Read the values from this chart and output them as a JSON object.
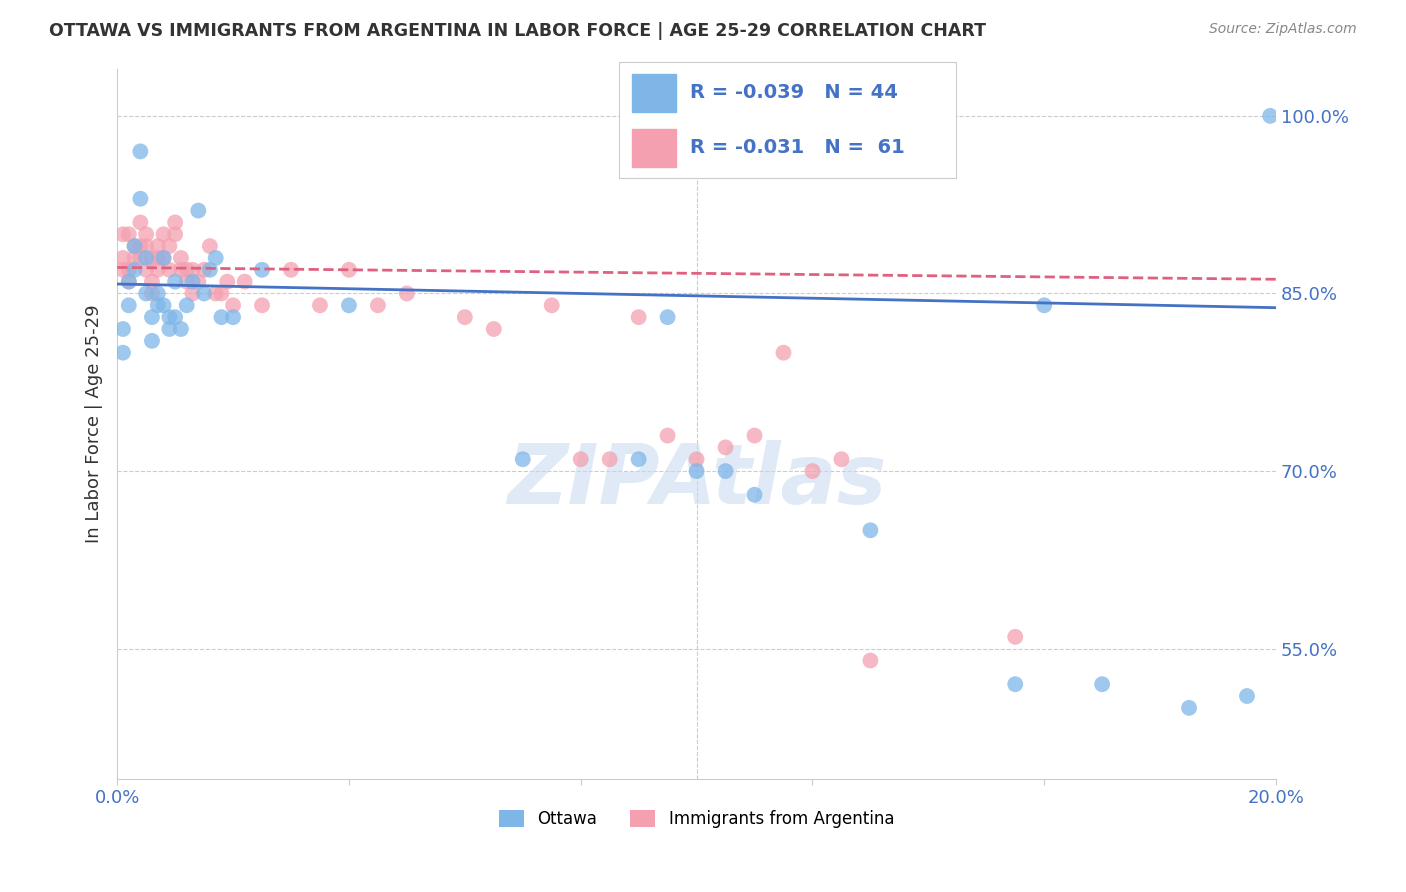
{
  "title": "OTTAWA VS IMMIGRANTS FROM ARGENTINA IN LABOR FORCE | AGE 25-29 CORRELATION CHART",
  "source": "Source: ZipAtlas.com",
  "ylabel": "In Labor Force | Age 25-29",
  "xlim": [
    0.0,
    0.2
  ],
  "ylim": [
    0.44,
    1.04
  ],
  "right_ytick_vals": [
    1.0,
    0.85,
    0.7,
    0.55
  ],
  "right_ytick_labels": [
    "100.0%",
    "85.0%",
    "70.0%",
    "55.0%"
  ],
  "legend_r_ottawa": "-0.039",
  "legend_n_ottawa": "44",
  "legend_r_arg": "-0.031",
  "legend_n_arg": " 61",
  "ottawa_color": "#7EB6E8",
  "arg_color": "#F4A0B0",
  "ottawa_line_color": "#4472C4",
  "arg_line_color": "#E06080",
  "watermark": "ZIPAtlas",
  "watermark_color": "#C8D8F0",
  "ottawa_x": [
    0.001,
    0.001,
    0.002,
    0.002,
    0.003,
    0.003,
    0.004,
    0.004,
    0.005,
    0.005,
    0.006,
    0.006,
    0.007,
    0.007,
    0.008,
    0.008,
    0.009,
    0.009,
    0.01,
    0.01,
    0.011,
    0.012,
    0.013,
    0.014,
    0.015,
    0.016,
    0.017,
    0.018,
    0.02,
    0.025,
    0.04,
    0.07,
    0.09,
    0.095,
    0.1,
    0.105,
    0.11,
    0.13,
    0.155,
    0.16,
    0.17,
    0.185,
    0.195,
    0.199
  ],
  "ottawa_y": [
    0.82,
    0.8,
    0.86,
    0.84,
    0.87,
    0.89,
    0.93,
    0.97,
    0.88,
    0.85,
    0.83,
    0.81,
    0.85,
    0.84,
    0.88,
    0.84,
    0.83,
    0.82,
    0.86,
    0.83,
    0.82,
    0.84,
    0.86,
    0.92,
    0.85,
    0.87,
    0.88,
    0.83,
    0.83,
    0.87,
    0.84,
    0.71,
    0.71,
    0.83,
    0.7,
    0.7,
    0.68,
    0.65,
    0.52,
    0.84,
    0.52,
    0.5,
    0.51,
    1.0
  ],
  "arg_x": [
    0.001,
    0.001,
    0.001,
    0.002,
    0.002,
    0.002,
    0.003,
    0.003,
    0.004,
    0.004,
    0.004,
    0.005,
    0.005,
    0.005,
    0.006,
    0.006,
    0.006,
    0.007,
    0.007,
    0.007,
    0.008,
    0.008,
    0.009,
    0.009,
    0.01,
    0.01,
    0.011,
    0.011,
    0.012,
    0.012,
    0.013,
    0.013,
    0.014,
    0.015,
    0.016,
    0.017,
    0.018,
    0.019,
    0.02,
    0.022,
    0.025,
    0.03,
    0.035,
    0.04,
    0.045,
    0.05,
    0.06,
    0.065,
    0.075,
    0.08,
    0.085,
    0.09,
    0.095,
    0.1,
    0.105,
    0.11,
    0.115,
    0.12,
    0.125,
    0.13,
    0.155
  ],
  "arg_y": [
    0.87,
    0.88,
    0.9,
    0.86,
    0.9,
    0.87,
    0.88,
    0.89,
    0.89,
    0.91,
    0.88,
    0.87,
    0.89,
    0.9,
    0.85,
    0.86,
    0.88,
    0.87,
    0.89,
    0.88,
    0.88,
    0.9,
    0.87,
    0.89,
    0.9,
    0.91,
    0.87,
    0.88,
    0.86,
    0.87,
    0.87,
    0.85,
    0.86,
    0.87,
    0.89,
    0.85,
    0.85,
    0.86,
    0.84,
    0.86,
    0.84,
    0.87,
    0.84,
    0.87,
    0.84,
    0.85,
    0.83,
    0.82,
    0.84,
    0.71,
    0.71,
    0.83,
    0.73,
    0.71,
    0.72,
    0.73,
    0.8,
    0.7,
    0.71,
    0.54,
    0.56
  ]
}
